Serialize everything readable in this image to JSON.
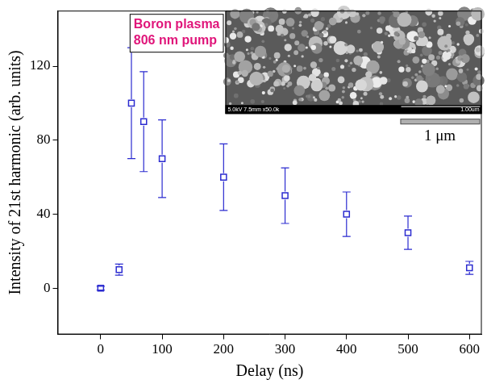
{
  "chart_data": {
    "type": "scatter",
    "x_label": "Delay (ns)",
    "y_label": "Intensity of 21st harmonic (arb. units)",
    "x": [
      0,
      30,
      50,
      70,
      100,
      200,
      300,
      400,
      500,
      600
    ],
    "values": [
      0,
      10,
      100,
      90,
      70,
      60,
      50,
      40,
      30,
      11
    ],
    "errors": [
      1,
      3,
      30,
      27,
      21,
      18,
      15,
      12,
      9,
      3.5
    ],
    "color": "#2b2bd0",
    "marker": "square",
    "xlim": [
      -70,
      620
    ],
    "xticks": [
      0,
      100,
      200,
      300,
      400,
      500,
      600
    ],
    "ylim": [
      -25,
      150
    ],
    "yticks": [
      0,
      40,
      80,
      120
    ],
    "grid": false,
    "annotations": {
      "label_box": [
        "Boron plasma",
        "806 nm pump"
      ],
      "label_color": "#e0157a",
      "inset_footer": "5.0kV 7.5mm x50.0k",
      "inset_scale": "1.00um",
      "scale_bar_label": "1 μm"
    }
  }
}
